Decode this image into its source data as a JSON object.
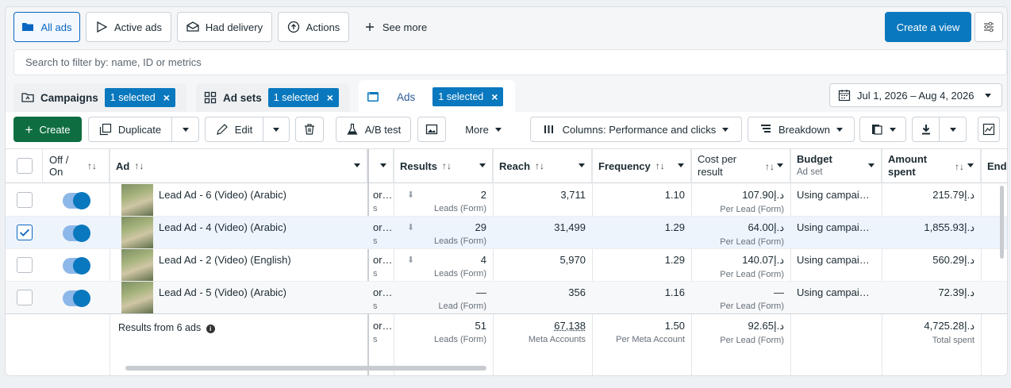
{
  "top_filters": {
    "all_ads": "All ads",
    "active_ads": "Active ads",
    "had_delivery": "Had delivery",
    "actions": "Actions",
    "see_more": "See more",
    "create_view": "Create a view"
  },
  "search": {
    "placeholder": "Search to filter by: name, ID or metrics"
  },
  "tabs": {
    "campaigns": {
      "label": "Campaigns",
      "chip": "1 selected"
    },
    "ad_sets": {
      "label": "Ad sets",
      "chip": "1 selected"
    },
    "ads": {
      "label": "Ads",
      "chip": "1 selected"
    }
  },
  "date_range": "Jul 1, 2026 – Aug 4, 2026",
  "toolbar": {
    "create": "Create",
    "duplicate": "Duplicate",
    "edit": "Edit",
    "ab_test": "A/B test",
    "more": "More",
    "columns": "Columns: Performance and clicks",
    "breakdown": "Breakdown"
  },
  "table": {
    "headers": {
      "off_on_1": "Off /",
      "off_on_2": "On",
      "ad": "Ad",
      "results": "Results",
      "reach": "Reach",
      "frequency": "Frequency",
      "cost_1": "Cost per",
      "cost_2": "result",
      "budget": "Budget",
      "budget_sub": "Ad set",
      "amount_1": "Amount",
      "amount_2": "spent",
      "ends": "End"
    },
    "rows": [
      {
        "name": "Lead Ad - 6 (Video) (Arabic)",
        "trunc": "or…",
        "trunc_sub": "s",
        "results": "2",
        "results_sub": "Leads (Form)",
        "reach": "3,711",
        "frequency": "1.10",
        "cost": "107.90د.إ",
        "cost_sub": "Per Lead (Form)",
        "budget": "Using campai…",
        "amount": "215.79د.إ",
        "selected": false
      },
      {
        "name": "Lead Ad - 4 (Video) (Arabic)",
        "trunc": "or…",
        "trunc_sub": "s",
        "results": "29",
        "results_sub": "Leads (Form)",
        "reach": "31,499",
        "frequency": "1.29",
        "cost": "64.00د.إ",
        "cost_sub": "Per Lead (Form)",
        "budget": "Using campai…",
        "amount": "1,855.93د.إ",
        "selected": true
      },
      {
        "name": "Lead Ad - 2 (Video) (English)",
        "trunc": "or…",
        "trunc_sub": "s",
        "results": "4",
        "results_sub": "Leads (Form)",
        "reach": "5,970",
        "frequency": "1.29",
        "cost": "140.07د.إ",
        "cost_sub": "Per Lead (Form)",
        "budget": "Using campai…",
        "amount": "560.29د.إ",
        "selected": false
      },
      {
        "name": "Lead Ad - 5 (Video) (Arabic)",
        "trunc": "or…",
        "trunc_sub": "s",
        "results": "—",
        "results_sub": "Lead (Form)",
        "reach": "356",
        "frequency": "1.16",
        "cost": "—",
        "cost_sub": "Per Lead (Form)",
        "budget": "Using campai…",
        "amount": "72.39د.إ",
        "selected": false
      }
    ],
    "totals": {
      "label": "Results from 6 ads",
      "trunc": "or…",
      "trunc_sub": "s",
      "results": "51",
      "results_sub": "Leads (Form)",
      "reach": "67,138",
      "reach_sub": "Meta Accounts",
      "frequency": "1.50",
      "frequency_sub": "Per Meta Account",
      "cost": "92.65د.إ",
      "cost_sub": "Per Lead (Form)",
      "amount": "4,725.28د.إ",
      "amount_sub": "Total spent"
    }
  }
}
